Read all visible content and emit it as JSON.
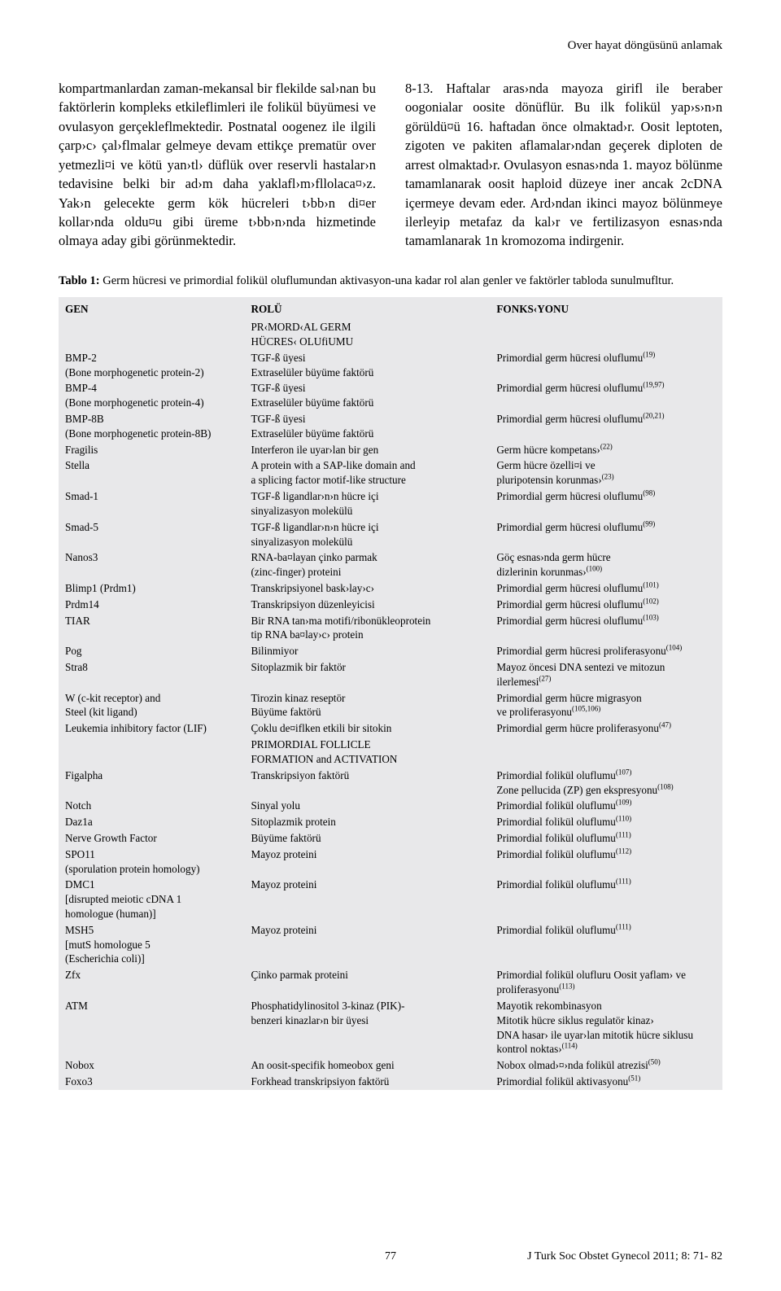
{
  "running_head": "Over hayat döngüsünü anlamak",
  "body": {
    "left": "kompartmanlardan zaman-mekansal bir flekilde sal›nan bu faktörlerin kompleks etkileflimleri ile folikül büyümesi ve ovulasyon gerçekleflmektedir. Postnatal oogenez ile ilgili çarp›c› çal›flmalar gelmeye devam ettikçe prematür over yetmezli¤i ve kötü yan›tl› düflük over reservli hastalar›n tedavisine belki bir ad›m daha yaklafl›m›fllolaca¤›z. Yak›n gelecekte germ kök hücreleri t›bb›n di¤er kollar›nda oldu¤u gibi üreme t›bb›n›nda hizmetinde olmaya aday gibi görünmektedir.",
    "right": "8-13. Haftalar aras›nda mayoza girifl ile beraber oogonialar oosite dönüflür. Bu ilk folikül yap›s›n›n görüldü¤ü 16. haftadan önce olmaktad›r. Oosit leptoten, zigoten ve pakiten aflamalar›ndan geçerek diploten de arrest olmaktad›r. Ovulasyon esnas›nda 1. mayoz bölünme tamamlanarak oosit haploid düzeye iner ancak 2cDNA içermeye devam eder. Ard›ndan ikinci mayoz bölünmeye ilerleyip metafaz da kal›r ve fertilizasyon esnas›nda tamamlanarak 1n kromozoma indirgenir."
  },
  "table": {
    "caption_label": "Tablo 1:",
    "caption_text": "Germ hücresi ve primordial folikül oluflumundan aktivasyon-una kadar rol alan genler ve faktörler tabloda sunulmufltur.",
    "bg_color": "#e8e8ea",
    "headers": {
      "c1": "GEN",
      "c2": "ROLÜ",
      "c3": "FONKS‹YONU"
    },
    "section1": [
      "PR‹MORD‹AL GERM",
      "HÜCRES‹ OLUfiUMU"
    ],
    "section2": [
      "PRIMORDIAL FOLLICLE",
      "FORMATION and ACTIVATION"
    ],
    "rows": [
      {
        "g": [
          "BMP-2",
          "(Bone morphogenetic protein-2)"
        ],
        "r": [
          "TGF-ß üyesi",
          "Extraselüler büyüme faktörü"
        ],
        "f": [
          {
            "t": "Primordial germ hücresi oluflumu",
            "s": "(19)"
          }
        ]
      },
      {
        "g": [
          "BMP-4",
          "(Bone morphogenetic protein-4)"
        ],
        "r": [
          "TGF-ß üyesi",
          "Extraselüler büyüme faktörü"
        ],
        "f": [
          {
            "t": "Primordial germ hücresi oluflumu",
            "s": "(19,97)"
          }
        ]
      },
      {
        "g": [
          "BMP-8B",
          "(Bone morphogenetic protein-8B)"
        ],
        "r": [
          "TGF-ß üyesi",
          "Extraselüler büyüme faktörü"
        ],
        "f": [
          {
            "t": "Primordial germ hücresi oluflumu",
            "s": "(20,21)"
          }
        ]
      },
      {
        "g": [
          "Fragilis"
        ],
        "r": [
          "Interferon ile uyar›lan bir gen"
        ],
        "f": [
          {
            "t": "Germ hücre kompetans›",
            "s": "(22)"
          }
        ]
      },
      {
        "g": [
          "Stella"
        ],
        "r": [
          "A protein with a SAP-like domain and",
          "a splicing factor motif-like structure"
        ],
        "f": [
          {
            "t": "Germ hücre özelli¤i ve"
          },
          {
            "t": "pluripotensin korunmas›",
            "s": "(23)"
          }
        ]
      },
      {
        "g": [
          "Smad-1"
        ],
        "r": [
          "TGF-ß ligandlar›n›n hücre içi",
          "sinyalizasyon molekülü"
        ],
        "f": [
          {
            "t": "Primordial germ hücresi oluflumu",
            "s": "(98)"
          }
        ]
      },
      {
        "g": [
          "Smad-5"
        ],
        "r": [
          "TGF-ß ligandlar›n›n hücre içi",
          "sinyalizasyon molekülü"
        ],
        "f": [
          {
            "t": "Primordial germ hücresi oluflumu",
            "s": "(99)"
          }
        ]
      },
      {
        "g": [
          "Nanos3"
        ],
        "r": [
          "RNA-ba¤layan çinko parmak",
          "(zinc-finger) proteini"
        ],
        "f": [
          {
            "t": "Göç esnas›nda germ hücre"
          },
          {
            "t": "dizlerinin korunmas›",
            "s": "(100)"
          }
        ]
      },
      {
        "g": [
          "Blimp1 (Prdm1)"
        ],
        "r": [
          "Transkripsiyonel bask›lay›c›"
        ],
        "f": [
          {
            "t": "Primordial germ hücresi oluflumu",
            "s": "(101)"
          }
        ]
      },
      {
        "g": [
          "Prdm14"
        ],
        "r": [
          "Transkripsiyon düzenleyicisi"
        ],
        "f": [
          {
            "t": "Primordial germ hücresi oluflumu",
            "s": "(102)"
          }
        ]
      },
      {
        "g": [
          "TIAR"
        ],
        "r": [
          "Bir RNA tan›ma motifi/ribonükleoprotein",
          "tip RNA ba¤lay›c› protein"
        ],
        "f": [
          {
            "t": "Primordial germ hücresi oluflumu",
            "s": "(103)"
          }
        ]
      },
      {
        "g": [
          "Pog"
        ],
        "r": [
          "Bilinmiyor"
        ],
        "f": [
          {
            "t": "Primordial germ hücresi proliferasyonu",
            "s": "(104)"
          }
        ]
      },
      {
        "g": [
          "Stra8"
        ],
        "r": [
          "Sitoplazmik bir faktör"
        ],
        "f": [
          {
            "t": "Mayoz öncesi DNA sentezi ve mitozun ilerlemesi",
            "s": "(27)"
          }
        ]
      },
      {
        "g": [
          "W (c-kit receptor) and",
          "Steel (kit ligand)"
        ],
        "r": [
          "Tirozin kinaz reseptör",
          "Büyüme faktörü"
        ],
        "f": [
          {
            "t": "Primordial germ hücre migrasyon"
          },
          {
            "t": "ve proliferasyonu",
            "s": "(105,106)"
          }
        ]
      },
      {
        "g": [
          "Leukemia inhibitory factor (LIF)"
        ],
        "r": [
          "Çoklu de¤iflken etkili bir sitokin"
        ],
        "f": [
          {
            "t": "Primordial germ hücre proliferasyonu",
            "s": "(47)"
          }
        ]
      }
    ],
    "rows2": [
      {
        "g": [
          "Figalpha"
        ],
        "r": [
          "Transkripsiyon faktörü"
        ],
        "f": [
          {
            "t": "Primordial folikül oluflumu",
            "s": "(107)"
          },
          {
            "t": "Zone pellucida (ZP) gen ekspresyonu",
            "s": "(108)"
          }
        ]
      },
      {
        "g": [
          "Notch"
        ],
        "r": [
          "Sinyal yolu"
        ],
        "f": [
          {
            "t": "Primordial folikül oluflumu",
            "s": "(109)"
          }
        ]
      },
      {
        "g": [
          "Daz1a"
        ],
        "r": [
          "Sitoplazmik protein"
        ],
        "f": [
          {
            "t": "Primordial folikül oluflumu",
            "s": "(110)"
          }
        ]
      },
      {
        "g": [
          "Nerve Growth Factor"
        ],
        "r": [
          "Büyüme faktörü"
        ],
        "f": [
          {
            "t": "Primordial folikül oluflumu",
            "s": "(111)"
          }
        ]
      },
      {
        "g": [
          "SPO11",
          "(sporulation protein homology)"
        ],
        "r": [
          "Mayoz proteini"
        ],
        "f": [
          {
            "t": "Primordial folikül oluflumu",
            "s": "(112)"
          }
        ]
      },
      {
        "g": [
          "DMC1",
          "[disrupted meiotic cDNA 1",
          "homologue (human)]"
        ],
        "r": [
          "Mayoz proteini"
        ],
        "f": [
          {
            "t": "Primordial folikül oluflumu",
            "s": "(111)"
          }
        ]
      },
      {
        "g": [
          "MSH5",
          "[mutS homologue 5",
          "(Escherichia coli)]"
        ],
        "r": [
          "Mayoz proteini"
        ],
        "f": [
          {
            "t": "Primordial folikül oluflumu",
            "s": "(111)"
          }
        ]
      },
      {
        "g": [
          "Zfx"
        ],
        "r": [
          "Çinko parmak proteini"
        ],
        "f": [
          {
            "t": "Primordial folikül olufluru Oosit yaflam› ve"
          },
          {
            "t": "proliferasyonu",
            "s": "(113)"
          }
        ]
      },
      {
        "g": [
          "ATM"
        ],
        "r": [
          "Phosphatidylinositol 3-kinaz (PIK)-",
          "benzeri kinazlar›n bir üyesi"
        ],
        "f": [
          {
            "t": "Mayotik rekombinasyon"
          },
          {
            "t": "Mitotik hücre siklus regulatör kinaz›"
          },
          {
            "t": "DNA hasar› ile uyar›lan mitotik hücre siklusu"
          },
          {
            "t": "kontrol noktas›",
            "s": "(114)"
          }
        ]
      },
      {
        "g": [
          "Nobox"
        ],
        "r": [
          "An oosit-specifik homeobox geni"
        ],
        "f": [
          {
            "t": "Nobox olmad›¤›nda folikül atrezisi",
            "s": "(50)"
          }
        ]
      },
      {
        "g": [
          "Foxo3"
        ],
        "r": [
          "Forkhead transkripsiyon faktörü"
        ],
        "f": [
          {
            "t": "Primordial folikül aktivasyonu",
            "s": "(51)"
          }
        ]
      }
    ]
  },
  "footer": {
    "page": "77",
    "citation": "J Turk Soc Obstet Gynecol 2011; 8: 71- 82"
  }
}
